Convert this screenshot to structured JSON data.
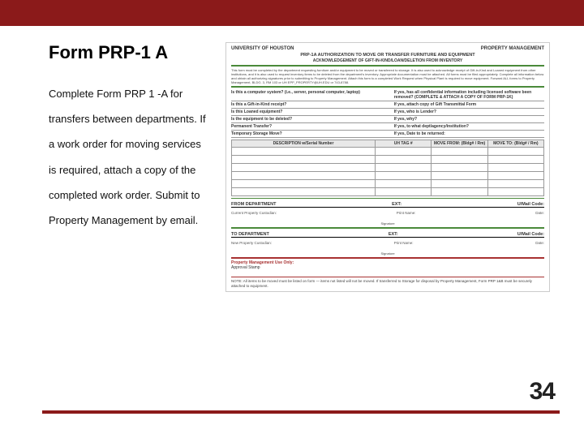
{
  "colors": {
    "accent": "#8b1a1a",
    "green": "#4a8a3a",
    "red": "#a83232",
    "bg": "#ffffff"
  },
  "slide": {
    "title": "Form PRP-1 A",
    "body": "Complete Form PRP 1 -A for transfers between departments. If a work order for moving services is required, attach a copy of the completed work order. Submit to Property Management by email.",
    "page_number": "34"
  },
  "form": {
    "org": "UNIVERSITY OF HOUSTON",
    "dept": "PROPERTY MANAGEMENT",
    "title": "PRP-1A  AUTHORIZATION TO MOVE OR TRANSFER FURNITURE AND EQUIPMENT",
    "subtitle": "ACKNOWLEDGEMENT OF GIFT-IN-KIND/LOAN/DELETION FROM INVENTORY",
    "instructions": "This form must be completed by the department requesting furniture and/or equipment to be moved or transferred to storage. It is also used to acknowledge receipt of Gift-in-Kind and Loaned equipment from other institutions, and it is also used to request inventory items to be deleted from the department's inventory. Appropriate documentation must be attached. All forms must be filed appropriately. Complete all information below and obtain all authorizing signatures prior to submitting to Property Management. Attach this form to a completed Work Request when Physical Plant is required to move equipment. Forward ALL forms to Property Management, BLDG. 3, RM 103 or UH EPP_PROPERTY@UH.EDU or 743-8788.",
    "questions": [
      {
        "left": "Is this a computer system?\n(i.e., server, personal computer, laptop)",
        "right": "If yes, has all confidential information including licensed software been removed?\n(COMPLETE & ATTACH A COPY OF FORM PRP-1K)"
      },
      {
        "left": "Is this a Gift-in-Kind receipt?",
        "right": "If yes, attach copy of Gift Transmittal Form"
      },
      {
        "left": "Is this Loaned equipment?",
        "right": "If yes, who is Lender?"
      },
      {
        "left": "Is the equipment to be deleted?",
        "right": "If yes, why?"
      },
      {
        "left": "Permanent Transfer?",
        "right": "If yes, to what dept/agency/institution?"
      },
      {
        "left": "Temporary Storage Move?",
        "right": "If yes, Date to be returned:"
      }
    ],
    "table_cols": [
      "DESCRIPTION w/Serial Number",
      "UH TAG #",
      "MOVE FROM:\n(Bldg# / Rm)",
      "MOVE TO:\n(Bldg# / Rm)"
    ],
    "table_rows": 6,
    "from_dept": {
      "label": "FROM  DEPARTMENT",
      "ext": "EXT:",
      "mail": "U/Mail Code:"
    },
    "from_fields": {
      "a": "Current Property Custodian:",
      "b": "Print Name:",
      "c": "Date:",
      "sig": "Signature"
    },
    "to_dept": {
      "label": "TO  DEPARTMENT",
      "ext": "EXT:",
      "mail": "U/Mail Code:"
    },
    "to_fields": {
      "a": "New Property Custodian:",
      "b": "Print Name:",
      "c": "Date:",
      "sig": "Signature"
    },
    "pmu_label": "Property Management Use Only:",
    "pmu_field": "Approval Stamp",
    "note": "NOTE: All items to be moved must be listed on form — items not listed will not be moved.\nIf transferred to Storage for disposal by Property Management, Form PRP 1&B must be securely attached to equipment."
  }
}
